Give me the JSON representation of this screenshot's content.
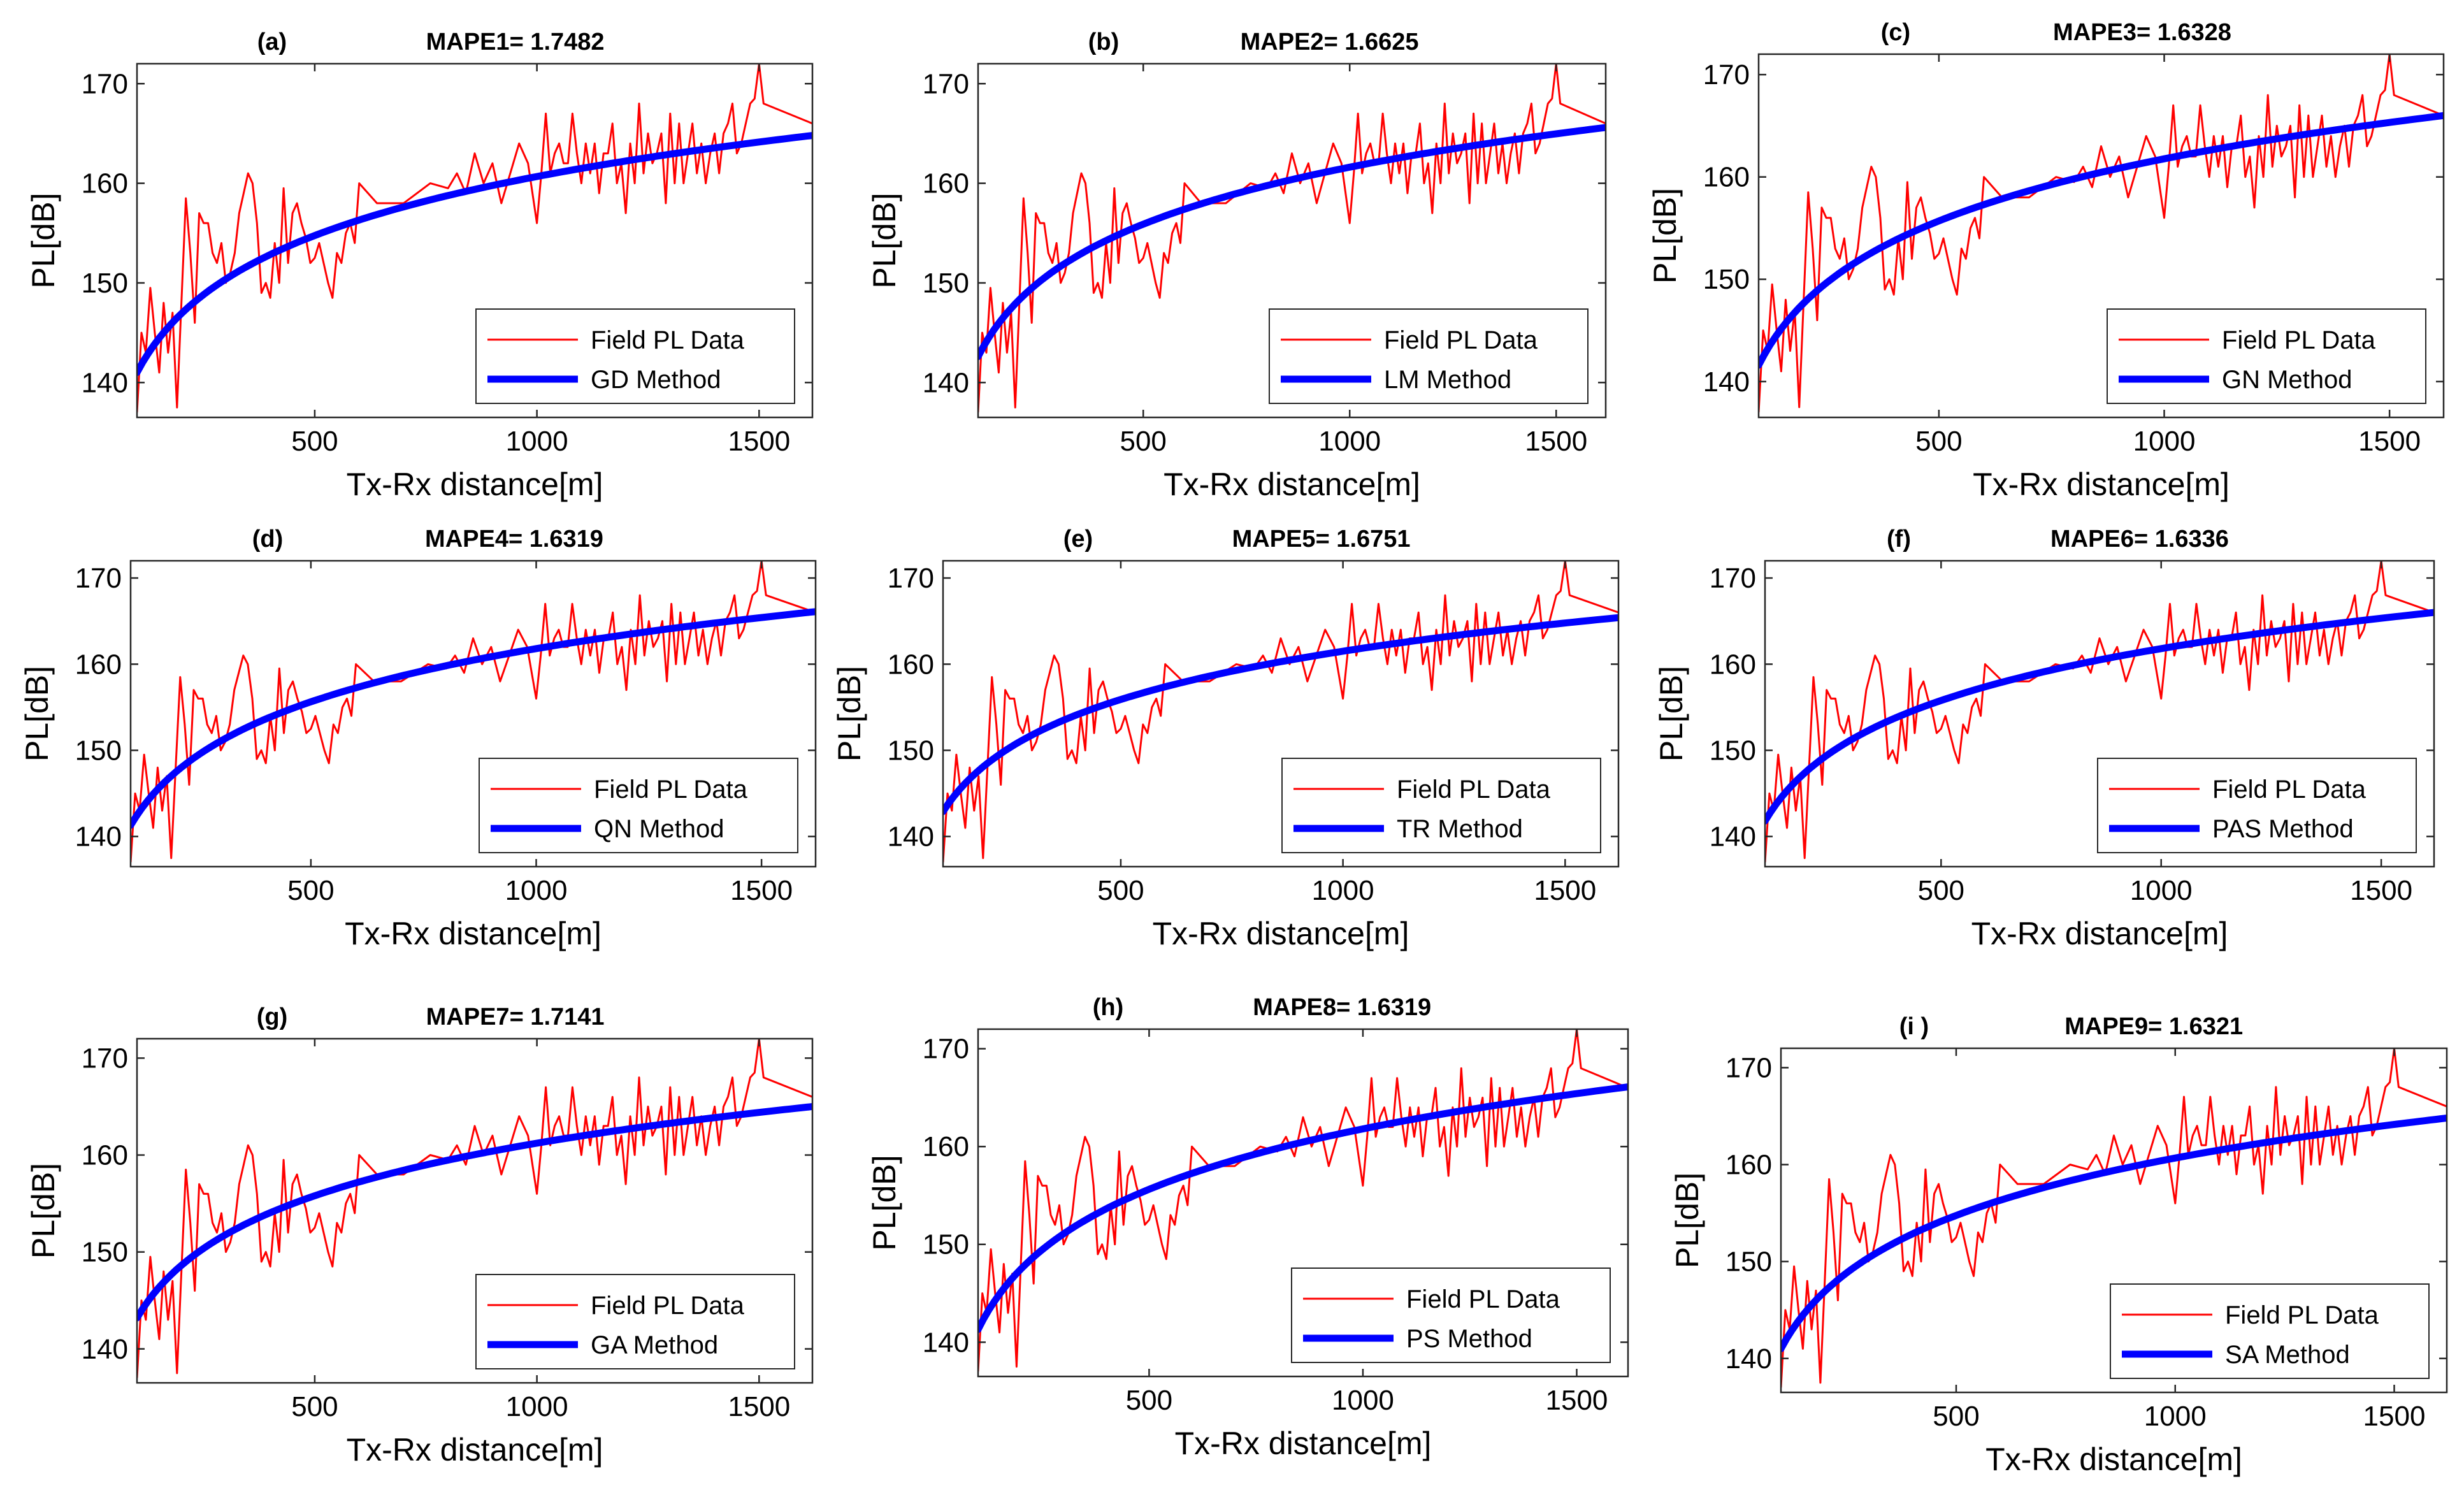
{
  "chart_data": [
    {
      "type": "line",
      "panel_label": "(a)",
      "title": "MAPE1= 1.7482",
      "xlabel": "Tx-Rx distance[m]",
      "ylabel": "PL[dB]",
      "xlim": [
        100,
        1620
      ],
      "ylim": [
        136.5,
        172
      ],
      "xticks": [
        500,
        1000,
        1500
      ],
      "yticks": [
        140,
        150,
        160,
        170
      ],
      "legend_position": "bottom-right",
      "series": [
        {
          "name": "Field PL Data",
          "color": "#ff0000",
          "kind": "measured"
        },
        {
          "name": "GD Method",
          "color": "#0000ff",
          "kind": "fit",
          "model": "log",
          "y_at_100": 141.0,
          "y_at_1620": 164.8
        }
      ]
    },
    {
      "type": "line",
      "panel_label": "(b)",
      "title": "MAPE2= 1.6625",
      "xlabel": "Tx-Rx distance[m]",
      "ylabel": "PL[dB]",
      "xlim": [
        100,
        1620
      ],
      "ylim": [
        136.5,
        172
      ],
      "xticks": [
        500,
        1000,
        1500
      ],
      "yticks": [
        140,
        150,
        160,
        170
      ],
      "legend_position": "bottom-right",
      "series": [
        {
          "name": "Field PL Data",
          "color": "#ff0000",
          "kind": "measured"
        },
        {
          "name": "LM Method",
          "color": "#0000ff",
          "kind": "fit",
          "model": "log",
          "y_at_100": 142.6,
          "y_at_1620": 165.6
        }
      ]
    },
    {
      "type": "line",
      "panel_label": "(c)",
      "title": "MAPE3= 1.6328",
      "xlabel": "Tx-Rx distance[m]",
      "ylabel": "PL[dB]",
      "xlim": [
        100,
        1620
      ],
      "ylim": [
        136.5,
        172
      ],
      "xticks": [
        500,
        1000,
        1500
      ],
      "yticks": [
        140,
        150,
        160,
        170
      ],
      "legend_position": "bottom-right",
      "series": [
        {
          "name": "Field PL Data",
          "color": "#ff0000",
          "kind": "measured"
        },
        {
          "name": "GN Method",
          "color": "#0000ff",
          "kind": "fit",
          "model": "log",
          "y_at_100": 141.6,
          "y_at_1620": 166.0
        }
      ]
    },
    {
      "type": "line",
      "panel_label": "(d)",
      "title": "MAPE4= 1.6319",
      "xlabel": "Tx-Rx distance[m]",
      "ylabel": "PL[dB]",
      "xlim": [
        100,
        1620
      ],
      "ylim": [
        136.5,
        172
      ],
      "xticks": [
        500,
        1000,
        1500
      ],
      "yticks": [
        140,
        150,
        160,
        170
      ],
      "legend_position": "bottom-right",
      "series": [
        {
          "name": "Field PL Data",
          "color": "#ff0000",
          "kind": "measured"
        },
        {
          "name": "QN Method",
          "color": "#0000ff",
          "kind": "fit",
          "model": "log",
          "y_at_100": 141.3,
          "y_at_1620": 166.1
        }
      ]
    },
    {
      "type": "line",
      "panel_label": "(e)",
      "title": "MAPE5= 1.6751",
      "xlabel": "Tx-Rx distance[m]",
      "ylabel": "PL[dB]",
      "xlim": [
        100,
        1620
      ],
      "ylim": [
        136.5,
        172
      ],
      "xticks": [
        500,
        1000,
        1500
      ],
      "yticks": [
        140,
        150,
        160,
        170
      ],
      "legend_position": "bottom-right",
      "series": [
        {
          "name": "Field PL Data",
          "color": "#ff0000",
          "kind": "measured"
        },
        {
          "name": "TR Method",
          "color": "#0000ff",
          "kind": "fit",
          "model": "log",
          "y_at_100": 142.9,
          "y_at_1620": 165.4
        }
      ]
    },
    {
      "type": "line",
      "panel_label": "(f)",
      "title": "MAPE6= 1.6336",
      "xlabel": "Tx-Rx distance[m]",
      "ylabel": "PL[dB]",
      "xlim": [
        100,
        1620
      ],
      "ylim": [
        136.5,
        172
      ],
      "xticks": [
        500,
        1000,
        1500
      ],
      "yticks": [
        140,
        150,
        160,
        170
      ],
      "legend_position": "bottom-right",
      "series": [
        {
          "name": "Field PL Data",
          "color": "#ff0000",
          "kind": "measured"
        },
        {
          "name": "PAS Method",
          "color": "#0000ff",
          "kind": "fit",
          "model": "log",
          "y_at_100": 141.8,
          "y_at_1620": 166.0
        }
      ]
    },
    {
      "type": "line",
      "panel_label": "(g)",
      "title": "MAPE7= 1.7141",
      "xlabel": "Tx-Rx distance[m]",
      "ylabel": "PL[dB]",
      "xlim": [
        100,
        1620
      ],
      "ylim": [
        136.5,
        172
      ],
      "xticks": [
        500,
        1000,
        1500
      ],
      "yticks": [
        140,
        150,
        160,
        170
      ],
      "legend_position": "bottom-right",
      "series": [
        {
          "name": "Field PL Data",
          "color": "#ff0000",
          "kind": "measured"
        },
        {
          "name": "GA Method",
          "color": "#0000ff",
          "kind": "fit",
          "model": "log",
          "y_at_100": 143.2,
          "y_at_1620": 165.0
        }
      ]
    },
    {
      "type": "line",
      "panel_label": "(h)",
      "title": "MAPE8= 1.6319",
      "xlabel": "Tx-Rx distance[m]",
      "ylabel": "PL[dB]",
      "xlim": [
        100,
        1620
      ],
      "ylim": [
        136.5,
        172
      ],
      "xticks": [
        500,
        1000,
        1500
      ],
      "yticks": [
        140,
        150,
        160,
        170
      ],
      "legend_position": "bottom-right",
      "series": [
        {
          "name": "Field PL Data",
          "color": "#ff0000",
          "kind": "measured"
        },
        {
          "name": "PS Method",
          "color": "#0000ff",
          "kind": "fit",
          "model": "log",
          "y_at_100": 141.3,
          "y_at_1620": 166.1
        }
      ]
    },
    {
      "type": "line",
      "panel_label": "(i )",
      "title": "MAPE9= 1.6321",
      "xlabel": "Tx-Rx distance[m]",
      "ylabel": "PL[dB]",
      "xlim": [
        100,
        1620
      ],
      "ylim": [
        136.5,
        172
      ],
      "xticks": [
        500,
        1000,
        1500
      ],
      "yticks": [
        140,
        150,
        160,
        170
      ],
      "legend_position": "bottom-right",
      "series": [
        {
          "name": "Field PL Data",
          "color": "#ff0000",
          "kind": "measured"
        },
        {
          "name": "SA Method",
          "color": "#0000ff",
          "kind": "fit",
          "model": "log",
          "y_at_100": 141.0,
          "y_at_1620": 164.8
        }
      ]
    }
  ],
  "field_pl_data": {
    "x": [
      100,
      110,
      120,
      130,
      140,
      150,
      160,
      170,
      180,
      190,
      200,
      210,
      220,
      230,
      240,
      250,
      260,
      270,
      280,
      290,
      300,
      310,
      320,
      330,
      340,
      350,
      360,
      370,
      380,
      390,
      400,
      410,
      420,
      430,
      440,
      450,
      460,
      470,
      480,
      490,
      500,
      510,
      520,
      530,
      540,
      550,
      560,
      570,
      580,
      590,
      600,
      640,
      700,
      760,
      800,
      820,
      840,
      860,
      880,
      900,
      920,
      940,
      960,
      980,
      1000,
      1010,
      1020,
      1030,
      1040,
      1050,
      1060,
      1070,
      1080,
      1090,
      1100,
      1110,
      1120,
      1130,
      1140,
      1150,
      1160,
      1170,
      1180,
      1190,
      1200,
      1210,
      1220,
      1230,
      1240,
      1250,
      1260,
      1270,
      1280,
      1290,
      1300,
      1310,
      1320,
      1330,
      1340,
      1350,
      1360,
      1370,
      1380,
      1390,
      1400,
      1410,
      1420,
      1430,
      1440,
      1450,
      1460,
      1470,
      1480,
      1490,
      1500,
      1510,
      1620
    ],
    "y": [
      137,
      145,
      143,
      149.5,
      145,
      141,
      148,
      143,
      147,
      137.5,
      148,
      158.5,
      153,
      146,
      157,
      156,
      156,
      153,
      152,
      154,
      150,
      151,
      153,
      157,
      159,
      161,
      160,
      156,
      149,
      150,
      148.5,
      154,
      150,
      159.5,
      152,
      157,
      158,
      156,
      154.5,
      152,
      152.5,
      154,
      152,
      150,
      148.5,
      153,
      152,
      155,
      156,
      154,
      160,
      158,
      158,
      160,
      159.5,
      161,
      159,
      163,
      160,
      162,
      158,
      161,
      164,
      162,
      156,
      161,
      167,
      161,
      163,
      164,
      162,
      162,
      167,
      163,
      160,
      164,
      161,
      164,
      159,
      163,
      163,
      166,
      160,
      162,
      157,
      164,
      160,
      168,
      161,
      165,
      162,
      163,
      165,
      158,
      167,
      160,
      166,
      160,
      163,
      166,
      161,
      164,
      160,
      163,
      165,
      161,
      165,
      166,
      168,
      163,
      164,
      166,
      168,
      168.5,
      172,
      168,
      166
    ]
  }
}
